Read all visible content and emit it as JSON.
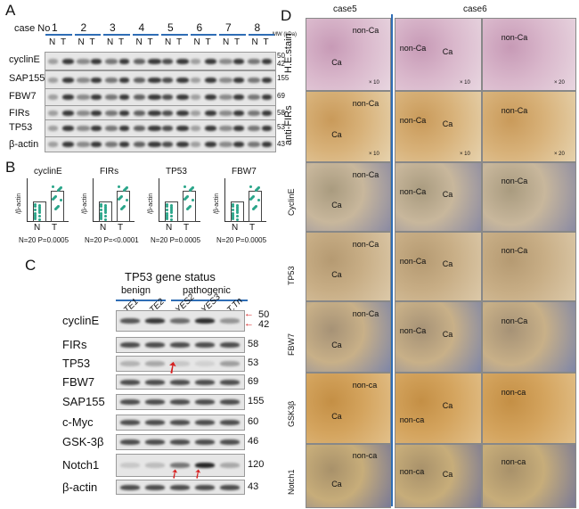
{
  "panelA": {
    "letter": "A",
    "case_label": "case No",
    "cases": [
      "1",
      "2",
      "3",
      "4",
      "5",
      "6",
      "7",
      "8"
    ],
    "lane_n": "N",
    "lane_t": "T",
    "mw_label": "MW (kDa)",
    "rows": [
      {
        "name": "cyclinE",
        "mw": [
          "50",
          "42"
        ]
      },
      {
        "name": "SAP155",
        "mw": [
          "155"
        ]
      },
      {
        "name": "FBW7",
        "mw": [
          "69"
        ]
      },
      {
        "name": "FIRs",
        "mw": [
          "58"
        ]
      },
      {
        "name": "TP53",
        "mw": [
          "53"
        ]
      },
      {
        "name": "β-actin",
        "mw": [
          "43"
        ]
      }
    ]
  },
  "panelB": {
    "letter": "B",
    "ylabel": "/β-actin",
    "plots": [
      {
        "title": "cyclinE",
        "stats": "N=20 P=0.0005",
        "x": [
          "N",
          "T"
        ]
      },
      {
        "title": "FIRs",
        "stats": "N=20 P=<0.0001",
        "x": [
          "N",
          "T"
        ]
      },
      {
        "title": "TP53",
        "stats": "N=20 P=0.0005",
        "x": [
          "N",
          "T"
        ]
      },
      {
        "title": "FBW7",
        "stats": "N=20 P=0.0005",
        "x": [
          "N",
          "T"
        ]
      }
    ]
  },
  "panelC": {
    "letter": "C",
    "title": "TP53 gene status",
    "group_benign": "benign",
    "group_pathogenic": "pathogenic",
    "lanes": [
      "TE1",
      "TE2",
      "YES2",
      "YES3",
      "T.Tn"
    ],
    "rows": [
      {
        "name": "cyclinE",
        "mw": "50",
        "mw2": "42"
      },
      {
        "name": "FIRs",
        "mw": "58"
      },
      {
        "name": "TP53",
        "mw": "53"
      },
      {
        "name": "FBW7",
        "mw": "69"
      },
      {
        "name": "SAP155",
        "mw": "155"
      },
      {
        "name": "c-Myc",
        "mw": "60"
      },
      {
        "name": "GSK-3β",
        "mw": "46"
      },
      {
        "name": "Notch1",
        "mw": "120"
      },
      {
        "name": "β-actin",
        "mw": "43"
      }
    ]
  },
  "panelD": {
    "letter": "D",
    "case5": "case5",
    "case6": "case6",
    "rows": [
      "H.E.stain",
      "anti-FIRs",
      "CyclinE",
      "TP53",
      "FBW7",
      "GSK3β",
      "Notch1"
    ],
    "tissue_ca": "Ca",
    "tissue_nonca": "non-Ca",
    "tissue_nonca_lower": "non-ca",
    "mag10": "× 10",
    "mag20": "× 20"
  }
}
